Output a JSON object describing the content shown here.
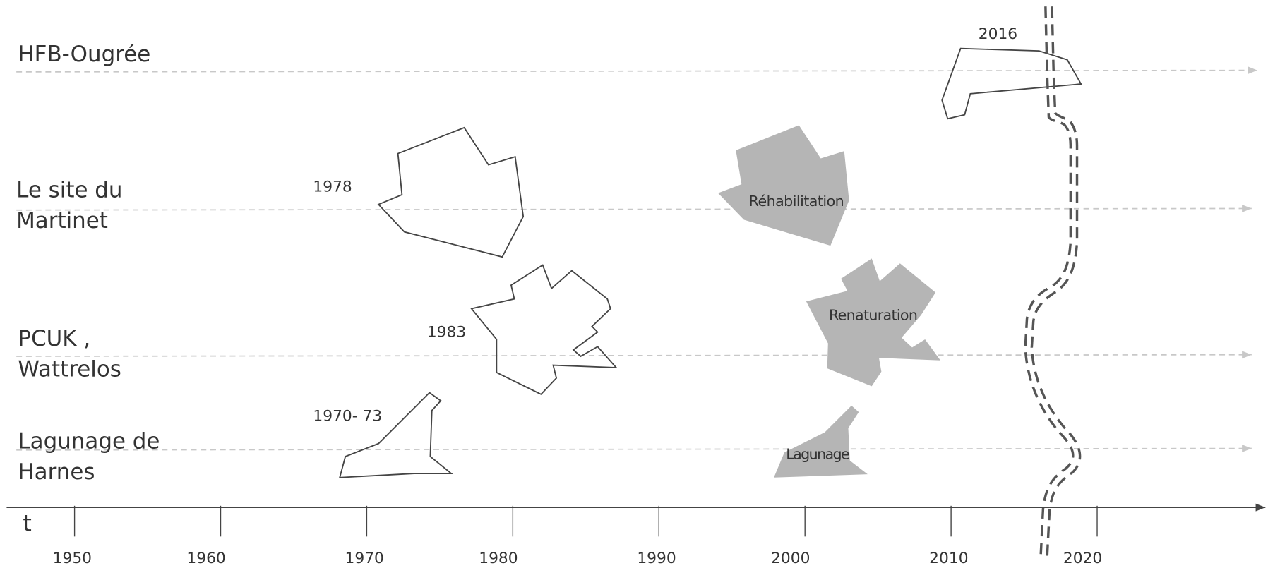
{
  "rows": [
    {
      "label": [
        "HFB-Ougrée"
      ],
      "year": "2016"
    },
    {
      "label": [
        "Le site du",
        "Martinet"
      ],
      "year": "1978"
    },
    {
      "label": [
        "PCUK ,",
        "Wattrelos"
      ],
      "year": "1983"
    },
    {
      "label": [
        "Lagunage de",
        "Harnes"
      ],
      "year": "1970- 73"
    }
  ],
  "stages": [
    "Réhabilitation",
    "Renaturation",
    "Lagunage"
  ],
  "axis": {
    "label": "t",
    "ticks": [
      "1950",
      "1960",
      "1970",
      "1980",
      "1990",
      "2000",
      "2010",
      "2020"
    ]
  }
}
